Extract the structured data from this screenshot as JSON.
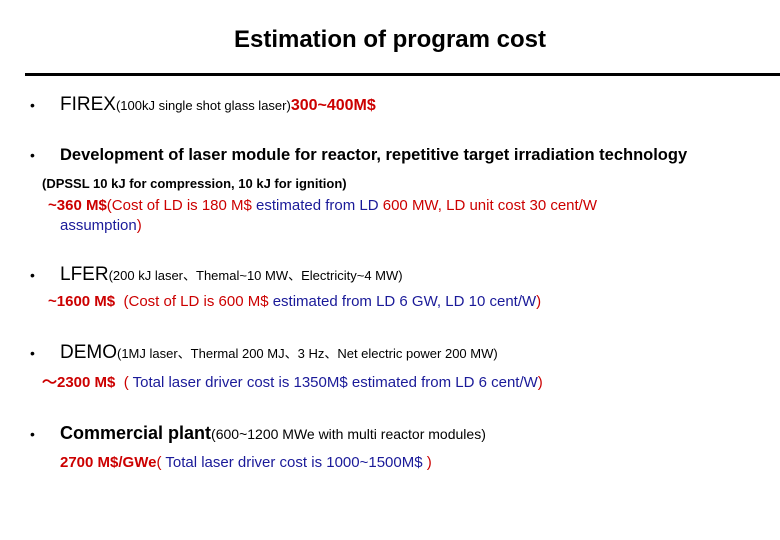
{
  "title": "Estimation of program cost",
  "items": [
    {
      "bullet": "•",
      "name": "FIREX",
      "detail": "(100kJ single shot glass laser)",
      "cost": "300~400M$"
    },
    {
      "bullet": "•",
      "name": "Development of laser module for reactor, repetitive target irradiation technology",
      "detail": "(DPSSL 10 kJ for compression, 10 kJ for ignition)",
      "cost": "~360 M$",
      "note_open": "(",
      "note_a": "Cost of LD is 180 M$",
      "note_b": " estimated from LD",
      "note_c": "  600 MW,",
      "note_d": " LD unit cost 30 cent/W",
      "note_e": "assumption",
      "note_close": ")"
    },
    {
      "bullet": "•",
      "name": "LFER",
      "detail": "(200 kJ laser、Themal~10 MW、Electricity~4 MW)",
      "cost": "~1600 M$",
      "note_open": "(",
      "note_a": "Cost of LD is 600 M$",
      "note_b": " estimated from LD 6 GW,",
      "note_c": " LD 10 cent/W",
      "note_close": ")"
    },
    {
      "bullet": "•",
      "name": "DEMO",
      "detail": "(1MJ laser、Thermal 200 MJ、3 Hz、Net electric power 200 MW)",
      "cost": "～2300 M$",
      "note_open": "(",
      "note_a": " Total laser driver cost is 1350M$",
      "note_b": " estimated from LD 6 cent/W",
      "note_close": ")"
    },
    {
      "bullet": "•",
      "name": "Commercial plant",
      "detail": "(600~1200 MWe  with multi reactor modules)",
      "cost": "2700 M$/GWe",
      "note_open": "(",
      "note_a": " Total laser driver cost is 1000~1500M$",
      "note_close": " )"
    }
  ]
}
